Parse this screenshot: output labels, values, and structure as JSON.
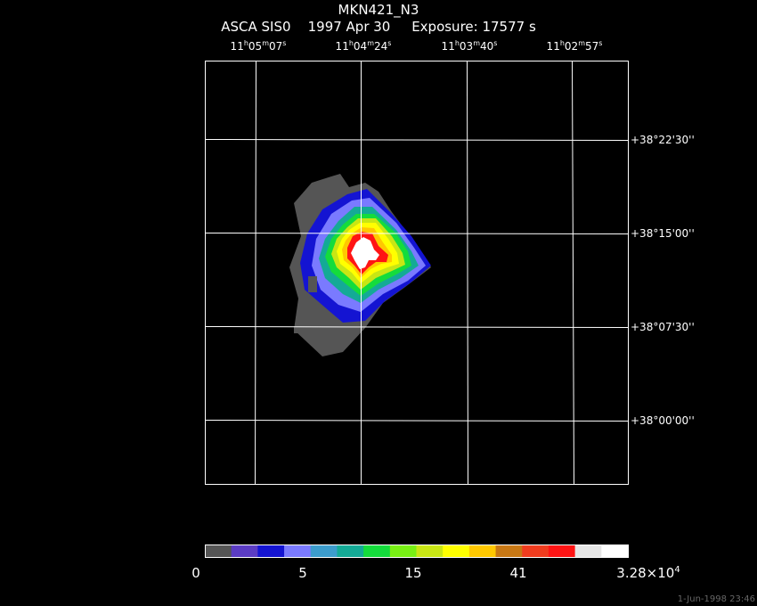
{
  "title": "MKN421_N3",
  "subtitle": "ASCA SIS0    1997 Apr 30     Exposure: 17577 s",
  "ra_labels": [
    {
      "h": "11",
      "m": "05",
      "s": "07"
    },
    {
      "h": "11",
      "m": "04",
      "s": "24"
    },
    {
      "h": "11",
      "m": "03",
      "s": "40"
    },
    {
      "h": "11",
      "m": "02",
      "s": "57"
    }
  ],
  "dec_labels": [
    "+38°22'30''",
    "+38°15'00''",
    "+38°07'30''",
    "+38°00'00''"
  ],
  "colorbar": {
    "colors": [
      "#555555",
      "#5b3cc4",
      "#1414d2",
      "#7a7aff",
      "#3c9ccc",
      "#14aa96",
      "#14dc3c",
      "#78f014",
      "#c8e614",
      "#ffff00",
      "#ffc800",
      "#c87814",
      "#f03c1e",
      "#ff1414",
      "#e6e6e6",
      "#ffffff"
    ],
    "labels": [
      "0",
      "5",
      "15",
      "41",
      "3.28×10"
    ],
    "last_exponent": "4"
  },
  "footer": "1-Jun-1998 23:46"
}
